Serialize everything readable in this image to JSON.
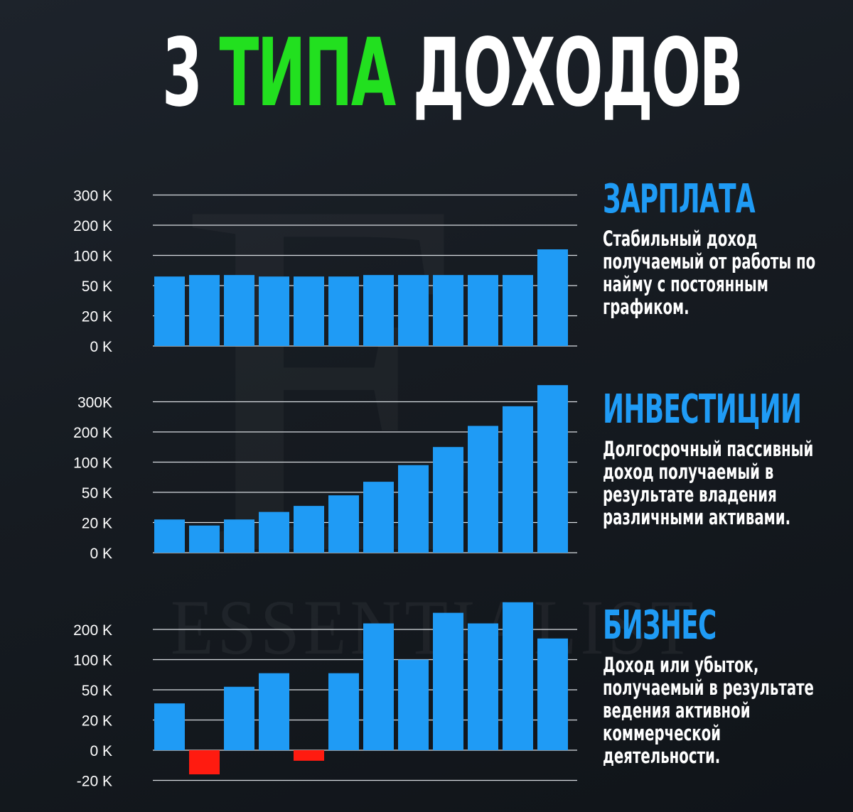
{
  "title": {
    "part1": "3",
    "part2": "ТИПА",
    "part3": "ДОХОДОВ"
  },
  "watermark": {
    "text": "ESSENTIALIST"
  },
  "colors": {
    "bar": "#1f9bf5",
    "negative_bar": "#ff1b10",
    "accent_green": "#22e01f",
    "text": "#ffffff"
  },
  "panels": [
    {
      "title": "ЗАРПЛАТА",
      "description": "Стабильный доход получаемый от работы по найму с постоянным графиком."
    },
    {
      "title": "ИНВЕСТИЦИИ",
      "description": "Долгосрочный пассивный доход получаемый в результате владения различными активами."
    },
    {
      "title": "БИЗНЕС",
      "description": "Доход или убыток, получаемый в результате ведения активной коммерческой деятельности."
    }
  ],
  "chart_data": [
    {
      "type": "bar",
      "title": "ЗАРПЛАТА",
      "yticks": [
        "0 K",
        "20 K",
        "50 K",
        "100 K",
        "200 K",
        "300 K"
      ],
      "tick_scale": "categorical-even",
      "values": [
        2.3,
        2.35,
        2.35,
        2.3,
        2.3,
        2.3,
        2.35,
        2.35,
        2.35,
        2.35,
        2.35,
        3.2
      ],
      "value_units": "tick index (0 = 0 K, 5 = 300 K)",
      "grid": true,
      "legend": "none"
    },
    {
      "type": "bar",
      "title": "ИНВЕСТИЦИИ",
      "yticks": [
        "0 K",
        "20 K",
        "50 K",
        "100 K",
        "200 K",
        "300K"
      ],
      "tick_scale": "categorical-even",
      "values": [
        1.1,
        0.9,
        1.1,
        1.35,
        1.55,
        1.9,
        2.35,
        2.9,
        3.5,
        4.2,
        4.85,
        5.55
      ],
      "value_units": "tick index (0 = 0 K, 5 = 300 K)",
      "grid": true,
      "legend": "none"
    },
    {
      "type": "bar",
      "title": "БИЗНЕС",
      "yticks": [
        "-20 K",
        "0 K",
        "20 K",
        "50 K",
        "100 K",
        "200 K"
      ],
      "tick_scale": "categorical-even",
      "values": [
        1.55,
        -0.8,
        2.1,
        2.55,
        null,
        2.55,
        4.2,
        3.0,
        4.55,
        4.2,
        4.9,
        3.7
      ],
      "small_negative_index": 4,
      "small_negative_value": -0.35,
      "value_units": "tick index (0 = 0 K, 1 = 20 K, -1 = -20 K)",
      "grid": true,
      "legend": "none"
    }
  ]
}
